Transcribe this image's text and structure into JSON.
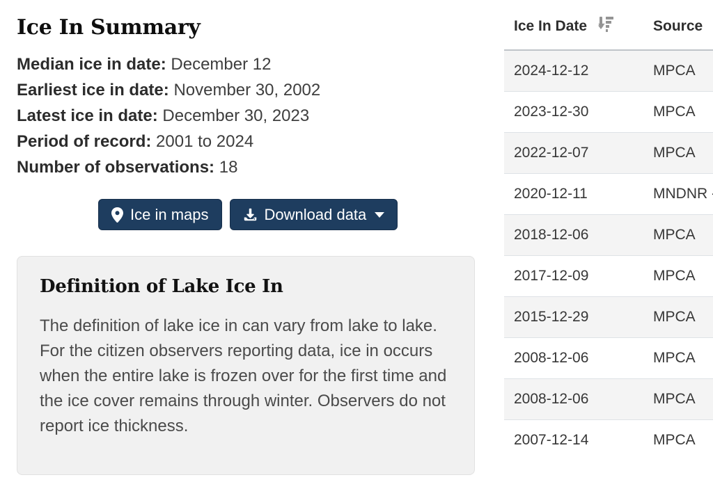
{
  "summary": {
    "title": "Ice In Summary",
    "stats": [
      {
        "label": "Median ice in date:",
        "value": "December 12"
      },
      {
        "label": "Earliest ice in date:",
        "value": "November 30, 2002"
      },
      {
        "label": "Latest ice in date:",
        "value": "December 30, 2023"
      },
      {
        "label": "Period of record:",
        "value": "2001 to 2024"
      },
      {
        "label": "Number of observations:",
        "value": "18"
      }
    ],
    "buttons": {
      "ice_in_maps": "Ice in maps",
      "download_data": "Download data"
    }
  },
  "definition": {
    "title": "Definition of Lake Ice In",
    "body": "The definition of lake ice in can vary from lake to lake. For the citizen observers reporting data, ice in occurs when the entire lake is frozen over for the first time and the ice cover remains through winter. Observers do not report ice thickness."
  },
  "table": {
    "columns": [
      "Ice In Date",
      "Source"
    ],
    "sort": {
      "column": "Ice In Date",
      "direction": "descending",
      "icon": "sort-amount-down-icon"
    },
    "rows": [
      {
        "date": "2024-12-12",
        "source": "MPCA"
      },
      {
        "date": "2023-12-30",
        "source": "MPCA"
      },
      {
        "date": "2022-12-07",
        "source": "MPCA"
      },
      {
        "date": "2020-12-11",
        "source": "MNDNR -"
      },
      {
        "date": "2018-12-06",
        "source": "MPCA"
      },
      {
        "date": "2017-12-09",
        "source": "MPCA"
      },
      {
        "date": "2015-12-29",
        "source": "MPCA"
      },
      {
        "date": "2008-12-06",
        "source": "MPCA"
      },
      {
        "date": "2008-12-06",
        "source": "MPCA"
      },
      {
        "date": "2007-12-14",
        "source": "MPCA"
      }
    ]
  },
  "icons": {
    "map_marker": "map-marker-icon",
    "download": "download-icon",
    "caret": "caret-down-icon",
    "sort": "sort-amount-down-icon"
  },
  "colors": {
    "button_bg": "#1e3d5f",
    "button_text": "#ffffff",
    "box_bg": "#f1f1f1",
    "row_stripe": "#f4f4f4",
    "row_border": "#dee2e6",
    "header_border": "#bfc4c9",
    "sort_icon": "#949494"
  }
}
